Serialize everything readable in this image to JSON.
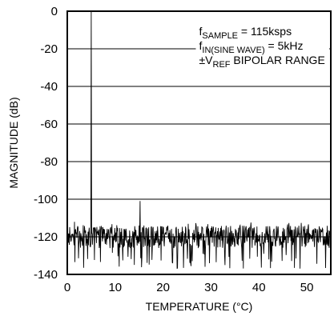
{
  "chart_data": {
    "type": "line",
    "xlabel": "TEMPERATURE (°C)",
    "ylabel": "MAGNITUDE (dB)",
    "xlim": [
      0,
      55
    ],
    "ylim": [
      -140,
      0
    ],
    "x_ticks": [
      "0",
      "10",
      "20",
      "30",
      "40",
      "50"
    ],
    "x_tick_values": [
      0,
      10,
      20,
      30,
      40,
      50
    ],
    "y_ticks": [
      "0",
      "-20",
      "-40",
      "-60",
      "-80",
      "-100",
      "-120",
      "-140"
    ],
    "y_tick_values": [
      0,
      -20,
      -40,
      -60,
      -80,
      -100,
      -120,
      -140
    ],
    "grid": true,
    "annotations": {
      "line1": {
        "f": "f",
        "sub": "SAMPLE",
        "rest": " = 115ksps"
      },
      "line2": {
        "f": "f",
        "sub": "IN(SINE WAVE)",
        "rest": " = 5kHz"
      },
      "line3": {
        "pre": "±V",
        "sub": "REF",
        "rest": " BIPOLAR RANGE"
      }
    },
    "series": [
      {
        "noise_floor_db": -120,
        "noise_min_db": -137,
        "noise_max_db": -112,
        "peaks": [
          {
            "x": 5,
            "y": 0
          },
          {
            "x": 15.2,
            "y": -101
          }
        ]
      }
    ],
    "line_color": "#000000"
  }
}
